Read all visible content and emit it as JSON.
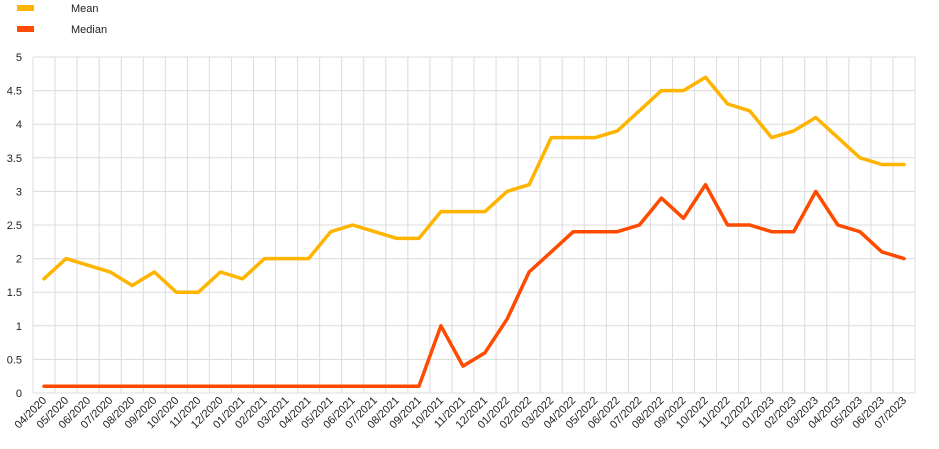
{
  "chart_data": {
    "type": "line",
    "title": "",
    "xlabel": "",
    "ylabel": "",
    "ylim": [
      0,
      5
    ],
    "yticks": [
      "0",
      "0.5",
      "1",
      "1.5",
      "2",
      "2.5",
      "3",
      "3.5",
      "4",
      "4.5",
      "5"
    ],
    "grid": "on",
    "legend_position": "top-left",
    "categories": [
      "04/2020",
      "05/2020",
      "06/2020",
      "07/2020",
      "08/2020",
      "09/2020",
      "10/2020",
      "11/2020",
      "12/2020",
      "01/2021",
      "02/2021",
      "03/2021",
      "04/2021",
      "05/2021",
      "06/2021",
      "07/2021",
      "08/2021",
      "09/2021",
      "10/2021",
      "11/2021",
      "12/2021",
      "01/2022",
      "02/2022",
      "03/2022",
      "04/2022",
      "05/2022",
      "06/2022",
      "07/2022",
      "08/2022",
      "09/2022",
      "10/2022",
      "11/2022",
      "12/2022",
      "01/2023",
      "02/2023",
      "03/2023",
      "04/2023",
      "05/2023",
      "06/2023",
      "07/2023"
    ],
    "series": [
      {
        "name": "Mean",
        "color": "#FFB400",
        "values": [
          1.7,
          2.0,
          1.9,
          1.8,
          1.6,
          1.8,
          1.5,
          1.5,
          1.8,
          1.7,
          2.0,
          2.0,
          2.0,
          2.4,
          2.5,
          2.4,
          2.3,
          2.3,
          2.7,
          2.7,
          2.7,
          3.0,
          3.1,
          3.8,
          3.8,
          3.8,
          3.9,
          4.2,
          4.5,
          4.5,
          4.7,
          4.3,
          4.2,
          3.8,
          3.9,
          4.1,
          3.8,
          3.5,
          3.4,
          3.4
        ]
      },
      {
        "name": "Median",
        "color": "#FF4B00",
        "values": [
          0.1,
          0.1,
          0.1,
          0.1,
          0.1,
          0.1,
          0.1,
          0.1,
          0.1,
          0.1,
          0.1,
          0.1,
          0.1,
          0.1,
          0.1,
          0.1,
          0.1,
          0.1,
          1.0,
          0.4,
          0.6,
          1.1,
          1.8,
          2.1,
          2.4,
          2.4,
          2.4,
          2.5,
          2.9,
          2.6,
          3.1,
          2.5,
          2.5,
          2.4,
          2.4,
          3.0,
          2.5,
          2.4,
          2.1,
          2.0
        ]
      }
    ]
  }
}
